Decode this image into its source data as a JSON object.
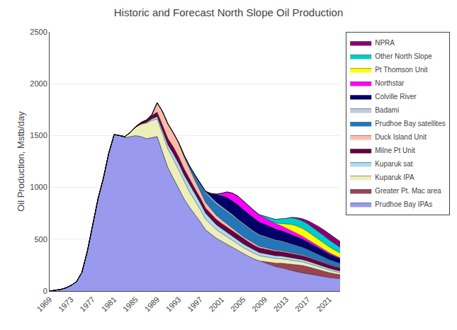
{
  "chart_data": {
    "type": "area",
    "stacked": true,
    "title": "Historic and Forecast North Slope Oil Production",
    "y_label": "Oil Production, Mstb/day",
    "x": [
      1969,
      1970,
      1971,
      1972,
      1973,
      1974,
      1975,
      1976,
      1977,
      1978,
      1979,
      1980,
      1981,
      1982,
      1983,
      1984,
      1985,
      1986,
      1987,
      1988,
      1989,
      1990,
      1991,
      1992,
      1993,
      1994,
      1995,
      1996,
      1997,
      1998,
      1999,
      2000,
      2001,
      2002,
      2003,
      2004,
      2005,
      2006,
      2007,
      2008,
      2009,
      2010,
      2011,
      2012,
      2013,
      2014,
      2015,
      2016,
      2017,
      2018,
      2019,
      2020,
      2021,
      2022,
      2023
    ],
    "series": [
      {
        "name": "Prudhoe Bay IPAs",
        "color": "#9999ee",
        "values": [
          0,
          5,
          15,
          30,
          55,
          90,
          180,
          380,
          640,
          890,
          1090,
          1330,
          1510,
          1500,
          1480,
          1490,
          1500,
          1490,
          1470,
          1480,
          1490,
          1340,
          1190,
          1090,
          990,
          890,
          810,
          740,
          670,
          590,
          550,
          510,
          480,
          450,
          420,
          390,
          360,
          335,
          310,
          290,
          270,
          252,
          235,
          225,
          210,
          195,
          185,
          175,
          165,
          155,
          145,
          138,
          130,
          125,
          120
        ]
      },
      {
        "name": "Greater Pt. Mac area",
        "color": "#994455",
        "values": [
          0,
          0,
          0,
          0,
          0,
          0,
          0,
          0,
          0,
          0,
          0,
          0,
          0,
          0,
          0,
          0,
          0,
          0,
          0,
          0,
          0,
          0,
          0,
          0,
          0,
          0,
          0,
          0,
          0,
          0,
          0,
          0,
          0,
          0,
          0,
          0,
          0,
          0,
          0,
          0,
          15,
          25,
          35,
          45,
          55,
          65,
          70,
          72,
          70,
          65,
          60,
          55,
          48,
          42,
          38
        ]
      },
      {
        "name": "Kuparuk IPA",
        "color": "#eeeebb",
        "values": [
          0,
          0,
          0,
          0,
          0,
          0,
          0,
          0,
          0,
          0,
          0,
          0,
          0,
          0,
          10,
          40,
          80,
          120,
          150,
          165,
          170,
          175,
          178,
          182,
          177,
          162,
          147,
          132,
          117,
          102,
          92,
          82,
          77,
          72,
          67,
          62,
          59,
          56,
          53,
          50,
          47,
          45,
          43,
          42,
          40,
          38,
          36,
          34,
          32,
          30,
          28,
          26,
          24,
          22,
          20
        ]
      },
      {
        "name": "Kuparuk sat",
        "color": "#aaddee",
        "values": [
          0,
          0,
          0,
          0,
          0,
          0,
          0,
          0,
          0,
          0,
          0,
          0,
          0,
          0,
          0,
          0,
          0,
          0,
          5,
          15,
          22,
          30,
          42,
          52,
          62,
          67,
          67,
          67,
          62,
          57,
          52,
          47,
          44,
          42,
          40,
          38,
          36,
          34,
          32,
          30,
          29,
          28,
          27,
          26,
          25,
          24,
          23,
          22,
          21,
          20,
          19,
          18,
          17,
          16,
          15
        ]
      },
      {
        "name": "Milne Pt Unit",
        "color": "#660044",
        "values": [
          0,
          0,
          0,
          0,
          0,
          0,
          0,
          0,
          0,
          0,
          0,
          0,
          0,
          0,
          0,
          0,
          5,
          15,
          25,
          35,
          45,
          55,
          62,
          67,
          67,
          62,
          57,
          52,
          52,
          52,
          52,
          52,
          52,
          52,
          52,
          52,
          50,
          49,
          48,
          47,
          46,
          45,
          44,
          43,
          42,
          41,
          40,
          39,
          38,
          37,
          36,
          35,
          34,
          33,
          32
        ]
      },
      {
        "name": "Duck Island Unit",
        "color": "#ffbbaa",
        "values": [
          0,
          0,
          0,
          0,
          0,
          0,
          0,
          0,
          0,
          0,
          0,
          0,
          0,
          0,
          0,
          0,
          0,
          0,
          0,
          5,
          90,
          130,
          140,
          135,
          130,
          112,
          95,
          78,
          62,
          52,
          44,
          38,
          33,
          29,
          25,
          22,
          20,
          18,
          16,
          14,
          13,
          12,
          11,
          10,
          9,
          9,
          8,
          8,
          7,
          7,
          6,
          6,
          5,
          5,
          5
        ]
      },
      {
        "name": "Prudhoe Bay satellites",
        "color": "#2277bb",
        "values": [
          0,
          0,
          0,
          0,
          0,
          0,
          0,
          0,
          0,
          0,
          0,
          0,
          0,
          0,
          0,
          0,
          0,
          0,
          0,
          0,
          0,
          0,
          0,
          0,
          5,
          18,
          32,
          52,
          72,
          92,
          102,
          112,
          117,
          122,
          122,
          120,
          117,
          114,
          110,
          106,
          102,
          97,
          92,
          87,
          82,
          77,
          72,
          67,
          62,
          57,
          52,
          47,
          42,
          38,
          34
        ]
      },
      {
        "name": "Badami",
        "color": "#bbccdd",
        "values": [
          0,
          0,
          0,
          0,
          0,
          0,
          0,
          0,
          0,
          0,
          0,
          0,
          0,
          0,
          0,
          0,
          0,
          0,
          0,
          0,
          0,
          0,
          0,
          0,
          0,
          0,
          0,
          0,
          6,
          12,
          14,
          14,
          13,
          12,
          11,
          10,
          10,
          9,
          9,
          8,
          8,
          7,
          7,
          7,
          6,
          6,
          6,
          5,
          5,
          5,
          5,
          4,
          4,
          4,
          4
        ]
      },
      {
        "name": "Colville River",
        "color": "#000066",
        "values": [
          0,
          0,
          0,
          0,
          0,
          0,
          0,
          0,
          0,
          0,
          0,
          0,
          0,
          0,
          0,
          0,
          0,
          0,
          0,
          0,
          0,
          0,
          0,
          0,
          0,
          0,
          0,
          0,
          0,
          5,
          35,
          75,
          105,
          125,
          135,
          140,
          135,
          130,
          125,
          120,
          115,
          110,
          105,
          100,
          95,
          90,
          85,
          80,
          75,
          70,
          65,
          60,
          55,
          50,
          45
        ]
      },
      {
        "name": "Northstar",
        "color": "#ff00ff",
        "values": [
          0,
          0,
          0,
          0,
          0,
          0,
          0,
          0,
          0,
          0,
          0,
          0,
          0,
          0,
          0,
          0,
          0,
          0,
          0,
          0,
          0,
          0,
          0,
          0,
          0,
          0,
          0,
          0,
          0,
          0,
          0,
          5,
          22,
          52,
          72,
          82,
          82,
          77,
          72,
          67,
          62,
          57,
          52,
          47,
          42,
          37,
          32,
          27,
          22,
          19,
          16,
          14,
          12,
          10,
          9
        ]
      },
      {
        "name": "Pt Thomson Unit",
        "color": "#ffff00",
        "values": [
          0,
          0,
          0,
          0,
          0,
          0,
          0,
          0,
          0,
          0,
          0,
          0,
          0,
          0,
          0,
          0,
          0,
          0,
          0,
          0,
          0,
          0,
          0,
          0,
          0,
          0,
          0,
          0,
          0,
          0,
          0,
          0,
          0,
          0,
          0,
          0,
          0,
          0,
          0,
          0,
          0,
          0,
          5,
          20,
          40,
          60,
          70,
          75,
          75,
          70,
          65,
          60,
          55,
          50,
          45
        ]
      },
      {
        "name": "Other North Slope",
        "color": "#00cccc",
        "values": [
          0,
          0,
          0,
          0,
          0,
          0,
          0,
          0,
          0,
          0,
          0,
          0,
          0,
          0,
          0,
          0,
          0,
          0,
          0,
          0,
          0,
          0,
          0,
          0,
          0,
          0,
          0,
          0,
          0,
          0,
          0,
          0,
          0,
          0,
          0,
          0,
          0,
          0,
          0,
          5,
          15,
          25,
          35,
          45,
          55,
          65,
          70,
          72,
          75,
          75,
          75,
          70,
          65,
          60,
          55
        ]
      },
      {
        "name": "NPRA",
        "color": "#880077",
        "values": [
          0,
          0,
          0,
          0,
          0,
          0,
          0,
          0,
          0,
          0,
          0,
          0,
          0,
          0,
          0,
          0,
          0,
          0,
          0,
          0,
          0,
          0,
          0,
          0,
          0,
          0,
          0,
          0,
          0,
          0,
          0,
          0,
          0,
          0,
          0,
          0,
          0,
          0,
          0,
          0,
          0,
          0,
          0,
          0,
          0,
          5,
          12,
          22,
          32,
          42,
          52,
          57,
          62,
          62,
          57
        ]
      }
    ],
    "xlim": [
      1969,
      2023
    ],
    "xticks": [
      1969,
      1973,
      1977,
      1981,
      1985,
      1989,
      1993,
      1997,
      2001,
      2005,
      2009,
      2013,
      2017,
      2021
    ],
    "ylim": [
      0,
      2500
    ],
    "yticks": [
      0,
      500,
      1000,
      1500,
      2000,
      2500
    ],
    "grid": "y",
    "legend": "upper right"
  }
}
